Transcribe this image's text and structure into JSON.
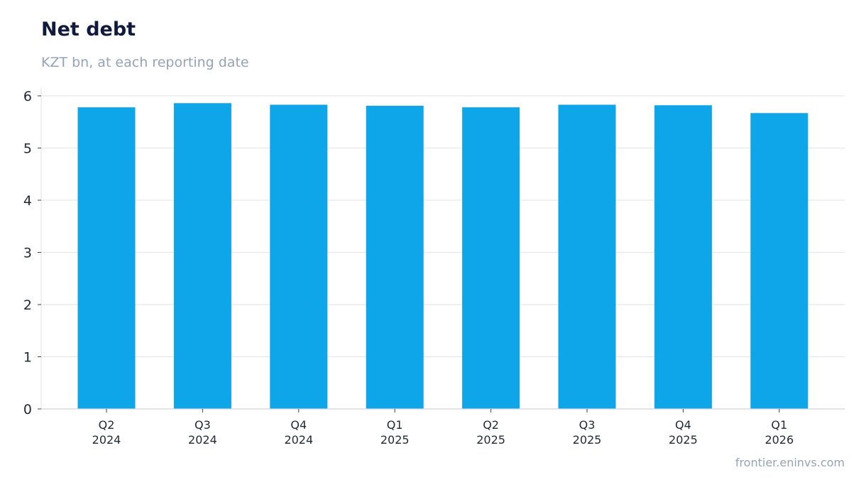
{
  "chart_data": {
    "type": "bar",
    "title": "Net debt",
    "subtitle": "KZT bn, at each reporting date",
    "categories": [
      [
        "Q2",
        "2024"
      ],
      [
        "Q3",
        "2024"
      ],
      [
        "Q4",
        "2024"
      ],
      [
        "Q1",
        "2025"
      ],
      [
        "Q2",
        "2025"
      ],
      [
        "Q3",
        "2025"
      ],
      [
        "Q4",
        "2025"
      ],
      [
        "Q1",
        "2026"
      ]
    ],
    "values": [
      5.78,
      5.86,
      5.83,
      5.81,
      5.78,
      5.83,
      5.82,
      5.67
    ],
    "ylim": [
      0,
      6
    ],
    "yticks": [
      0,
      1,
      2,
      3,
      4,
      5,
      6
    ],
    "grid": true,
    "bar_color": "#0ea5e9"
  },
  "source": "frontier.eninvs.com"
}
